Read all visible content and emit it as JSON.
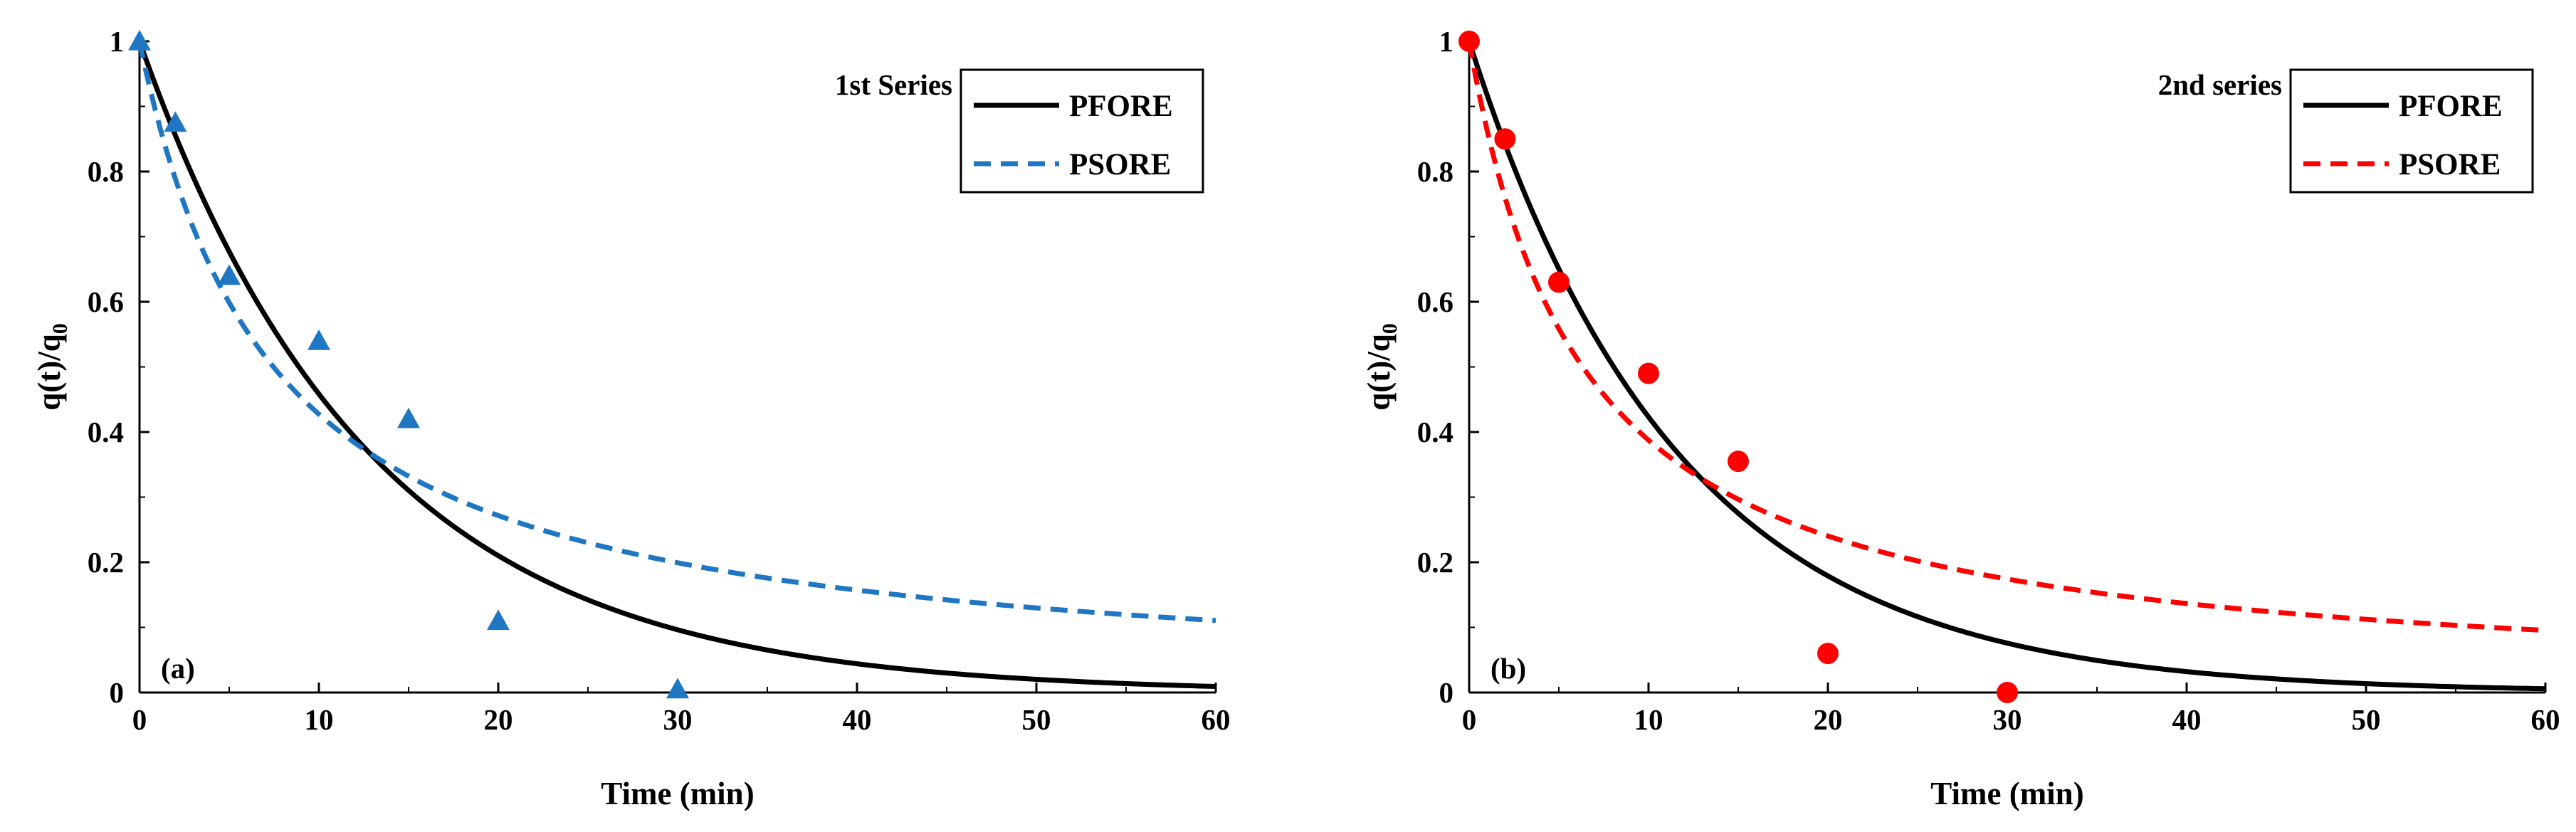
{
  "chart_data": [
    {
      "type": "scatter",
      "panel_label": "(a)",
      "series_title": "1st Series",
      "xlabel": "Time (min)",
      "ylabel_main": "q(t)/q",
      "ylabel_sub": "0",
      "xlim": [
        0,
        60
      ],
      "ylim": [
        0,
        1
      ],
      "xticks": [
        0,
        10,
        20,
        30,
        40,
        50,
        60
      ],
      "yticks": [
        0,
        0.2,
        0.4,
        0.6,
        0.8,
        1
      ],
      "ytick_labels": [
        "0",
        "0.2",
        "0.4",
        "0.6",
        "0.8",
        "1"
      ],
      "legend_position": "top-right",
      "marker": "triangle",
      "marker_color": "#1f77c4",
      "points": {
        "x": [
          0,
          2,
          5,
          10,
          15,
          20,
          30
        ],
        "y": [
          1.0,
          0.875,
          0.64,
          0.54,
          0.42,
          0.11,
          0.005
        ]
      },
      "series": [
        {
          "name": "PFORE",
          "style": "solid",
          "color": "#000000",
          "model": "first_order",
          "k": 0.078
        },
        {
          "name": "PSORE",
          "style": "dashed",
          "color": "#1f77c4",
          "model": "second_order",
          "k": 0.134
        }
      ]
    },
    {
      "type": "scatter",
      "panel_label": "(b)",
      "series_title": "2nd series",
      "xlabel": "Time (min)",
      "ylabel_main": "q(t)/q",
      "ylabel_sub": "0",
      "xlim": [
        0,
        60
      ],
      "ylim": [
        0,
        1
      ],
      "xticks": [
        0,
        10,
        20,
        30,
        40,
        50,
        60
      ],
      "yticks": [
        0,
        0.2,
        0.4,
        0.6,
        0.8,
        1
      ],
      "ytick_labels": [
        "0",
        "0.2",
        "0.4",
        "0.6",
        "0.8",
        "1"
      ],
      "legend_position": "top-right",
      "marker": "circle",
      "marker_color": "#ff0000",
      "points": {
        "x": [
          0,
          2,
          5,
          10,
          15,
          20,
          30
        ],
        "y": [
          1.0,
          0.85,
          0.63,
          0.49,
          0.355,
          0.06,
          0.0
        ]
      },
      "series": [
        {
          "name": "PFORE",
          "style": "solid",
          "color": "#000000",
          "model": "first_order",
          "k": 0.086
        },
        {
          "name": "PSORE",
          "style": "dashed",
          "color": "#ff0000",
          "model": "second_order",
          "k": 0.158
        }
      ]
    }
  ]
}
